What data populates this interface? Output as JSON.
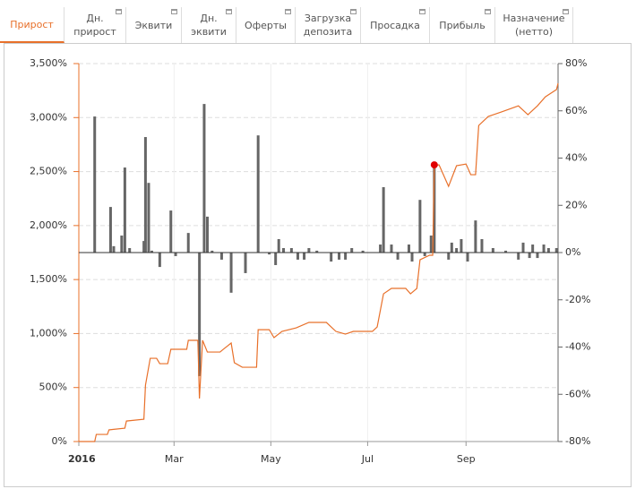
{
  "tabs": [
    "Прирост",
    "Дн.\nприрост",
    "Эквити",
    "Дн.\nэквити",
    "Оферты",
    "Загрузка\nдепозита",
    "Просадка",
    "Прибыль",
    "Назначение\n(нетто)"
  ],
  "active_tab": 0,
  "chart_data": {
    "type": "line",
    "xlim": [
      0,
      302
    ],
    "xticks": [
      {
        "value": 0,
        "label": "2016"
      },
      {
        "value": 60,
        "label": "Mar"
      },
      {
        "value": 121,
        "label": "May"
      },
      {
        "value": 182,
        "label": "Jul"
      },
      {
        "value": 244,
        "label": "Sep"
      }
    ],
    "ylim": [
      0,
      3500
    ],
    "yticks": [
      {
        "value": 0,
        "label": "0%"
      },
      {
        "value": 500,
        "label": "500%"
      },
      {
        "value": 1000,
        "label": "1,000%"
      },
      {
        "value": 1500,
        "label": "1,500%"
      },
      {
        "value": 2000,
        "label": "2,000%"
      },
      {
        "value": 2500,
        "label": "2,500%"
      },
      {
        "value": 3000,
        "label": "3,000%"
      },
      {
        "value": 3500,
        "label": "3,500%"
      }
    ],
    "y2lim": [
      -80,
      80
    ],
    "y2ticks": [
      {
        "value": -80,
        "label": "-80%"
      },
      {
        "value": -60,
        "label": "-60%"
      },
      {
        "value": -40,
        "label": "-40%"
      },
      {
        "value": -20,
        "label": "-20%"
      },
      {
        "value": 0,
        "label": "0%"
      },
      {
        "value": 20,
        "label": "20%"
      },
      {
        "value": 40,
        "label": "40%"
      },
      {
        "value": 60,
        "label": "60%"
      },
      {
        "value": 80,
        "label": "80%"
      }
    ],
    "grid": true,
    "series": [
      {
        "type": "bar",
        "axis": "y2",
        "color": "#666666",
        "x": [
          10,
          20,
          22,
          27,
          29,
          32,
          41,
          42,
          44,
          46,
          51,
          58,
          61,
          69,
          76,
          79,
          81,
          84,
          90,
          96,
          105,
          113,
          120,
          124,
          126,
          129,
          134,
          138,
          142,
          145,
          150,
          159,
          164,
          168,
          172,
          179,
          190,
          192,
          197,
          201,
          208,
          210,
          215,
          218,
          222,
          224,
          233,
          235,
          238,
          241,
          245,
          250,
          254,
          261,
          269,
          277,
          280,
          284,
          286,
          289,
          293,
          296,
          301
        ],
        "values": [
          57.6,
          19.3,
          2.7,
          7.2,
          36,
          1.9,
          4.9,
          48.9,
          29.5,
          0.8,
          -6.1,
          17.8,
          -1.5,
          8.3,
          -52.3,
          62.9,
          15.2,
          0.8,
          -3,
          -17,
          -8.7,
          49.6,
          -0.8,
          -5.3,
          5.7,
          1.9,
          1.9,
          -3,
          -3,
          1.9,
          0.8,
          -3.8,
          -3,
          -3,
          1.9,
          0.8,
          3.4,
          27.7,
          3.4,
          -3,
          3.4,
          -3.8,
          22.3,
          -1.5,
          7.2,
          37.1,
          -3,
          4.2,
          1.9,
          5.7,
          -3.8,
          13.6,
          5.7,
          1.9,
          0.8,
          -3,
          4.2,
          -2.3,
          3.4,
          -2.3,
          3.4,
          1.9,
          1.9
        ]
      },
      {
        "type": "line",
        "color": "#e8702a",
        "marker_index": 46,
        "marker_color": "#e00000",
        "x": [
          0,
          10,
          11,
          18,
          19,
          29,
          30,
          41,
          42,
          45,
          49,
          51,
          56,
          58,
          68,
          69,
          75,
          76,
          78,
          81,
          89,
          91,
          96,
          98,
          103,
          112,
          113,
          120,
          123,
          128,
          137,
          145,
          156,
          162,
          168,
          173,
          185,
          188,
          192,
          197,
          206,
          209,
          213,
          215,
          221,
          223,
          224,
          227,
          233,
          238,
          244,
          247,
          250,
          252,
          258,
          266,
          277,
          283,
          289,
          294,
          301,
          302
        ],
        "values": [
          0,
          0,
          66,
          66,
          108,
          124,
          190,
          207,
          522,
          771,
          771,
          721,
          721,
          854,
          854,
          937,
          937,
          398,
          937,
          829,
          829,
          854,
          912,
          730,
          688,
          688,
          1036,
          1036,
          962,
          1020,
          1053,
          1103,
          1103,
          1020,
          995,
          1020,
          1020,
          1061,
          1368,
          1418,
          1418,
          1368,
          1418,
          1683,
          1725,
          1725,
          2562,
          2562,
          2363,
          2554,
          2570,
          2471,
          2471,
          2927,
          3010,
          3051,
          3109,
          3027,
          3109,
          3192,
          3259,
          3317
        ]
      }
    ]
  }
}
